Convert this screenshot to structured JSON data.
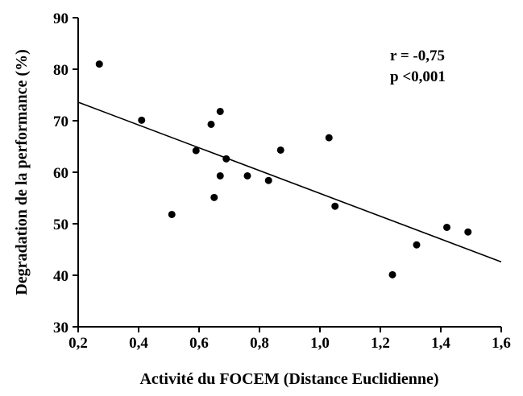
{
  "chart_data": {
    "type": "scatter",
    "title": "",
    "xlabel": "Activité du FOCEM (Distance Euclidienne)",
    "ylabel": "Degradation de la performance (%)",
    "xlim": [
      0.2,
      1.6
    ],
    "ylim": [
      30,
      90
    ],
    "x_ticks": [
      0.2,
      0.4,
      0.6,
      0.8,
      1.0,
      1.2,
      1.4,
      1.6
    ],
    "x_tick_labels": [
      "0,2",
      "0,4",
      "0,6",
      "0,8",
      "1,0",
      "1,2",
      "1,4",
      "1,6"
    ],
    "y_ticks": [
      30,
      40,
      50,
      60,
      70,
      80,
      90
    ],
    "y_tick_labels": [
      "30",
      "40",
      "50",
      "60",
      "70",
      "80",
      "90"
    ],
    "points": [
      {
        "x": 0.27,
        "y": 81.0
      },
      {
        "x": 0.41,
        "y": 70.1
      },
      {
        "x": 0.51,
        "y": 51.8
      },
      {
        "x": 0.59,
        "y": 64.2
      },
      {
        "x": 0.64,
        "y": 69.3
      },
      {
        "x": 0.65,
        "y": 55.1
      },
      {
        "x": 0.67,
        "y": 71.8
      },
      {
        "x": 0.67,
        "y": 59.3
      },
      {
        "x": 0.69,
        "y": 62.6
      },
      {
        "x": 0.76,
        "y": 59.3
      },
      {
        "x": 0.83,
        "y": 58.4
      },
      {
        "x": 0.87,
        "y": 64.3
      },
      {
        "x": 1.03,
        "y": 66.7
      },
      {
        "x": 1.05,
        "y": 53.4
      },
      {
        "x": 1.24,
        "y": 40.1
      },
      {
        "x": 1.32,
        "y": 45.9
      },
      {
        "x": 1.42,
        "y": 49.3
      },
      {
        "x": 1.49,
        "y": 48.4
      }
    ],
    "trendline": {
      "x": [
        0.2,
        1.6
      ],
      "y": [
        73.6,
        42.6
      ]
    },
    "annotations": [
      "r = -0,75",
      "p <0,001"
    ],
    "grid": false,
    "legend": "none"
  }
}
